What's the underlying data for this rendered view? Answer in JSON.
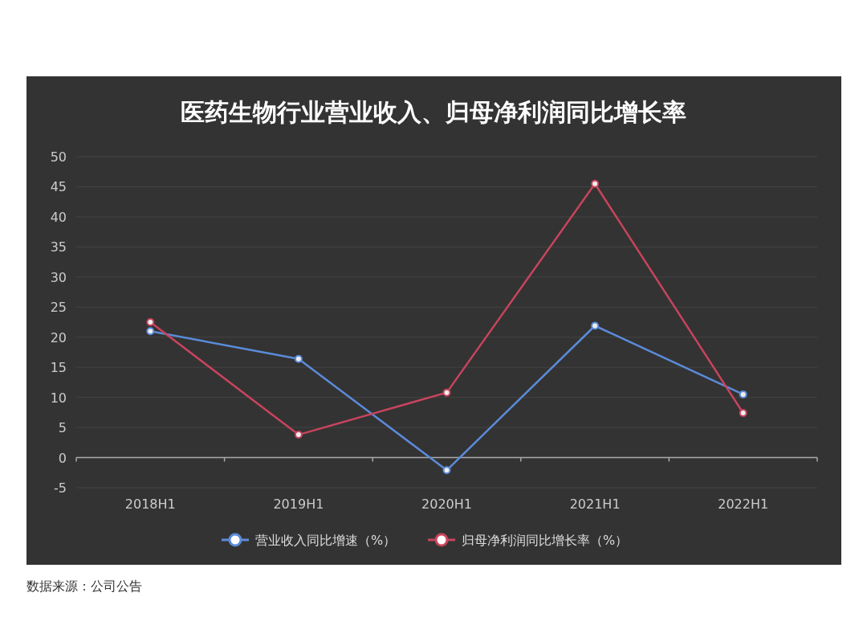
{
  "chart_data": {
    "type": "line",
    "title": "医药生物行业营业收入、归母净利润同比增长率",
    "categories": [
      "2018H1",
      "2019H1",
      "2020H1",
      "2021H1",
      "2022H1"
    ],
    "series": [
      {
        "name": "营业收入同比增速（%）",
        "color": "#5b8bd9",
        "values": [
          21.0,
          16.4,
          -2.1,
          21.9,
          10.5
        ]
      },
      {
        "name": "归母净利润同比增长率（%）",
        "color": "#c8445e",
        "values": [
          22.5,
          3.8,
          10.8,
          45.5,
          7.4
        ]
      }
    ],
    "ylim": [
      -5,
      50
    ],
    "yticks": [
      -5,
      0,
      5,
      10,
      15,
      20,
      25,
      30,
      35,
      40,
      45,
      50
    ],
    "grid": "y",
    "legend": "bottom",
    "marker": "circle",
    "line_style": "solid",
    "annotations": [
      "数据来源：公司公告"
    ]
  }
}
